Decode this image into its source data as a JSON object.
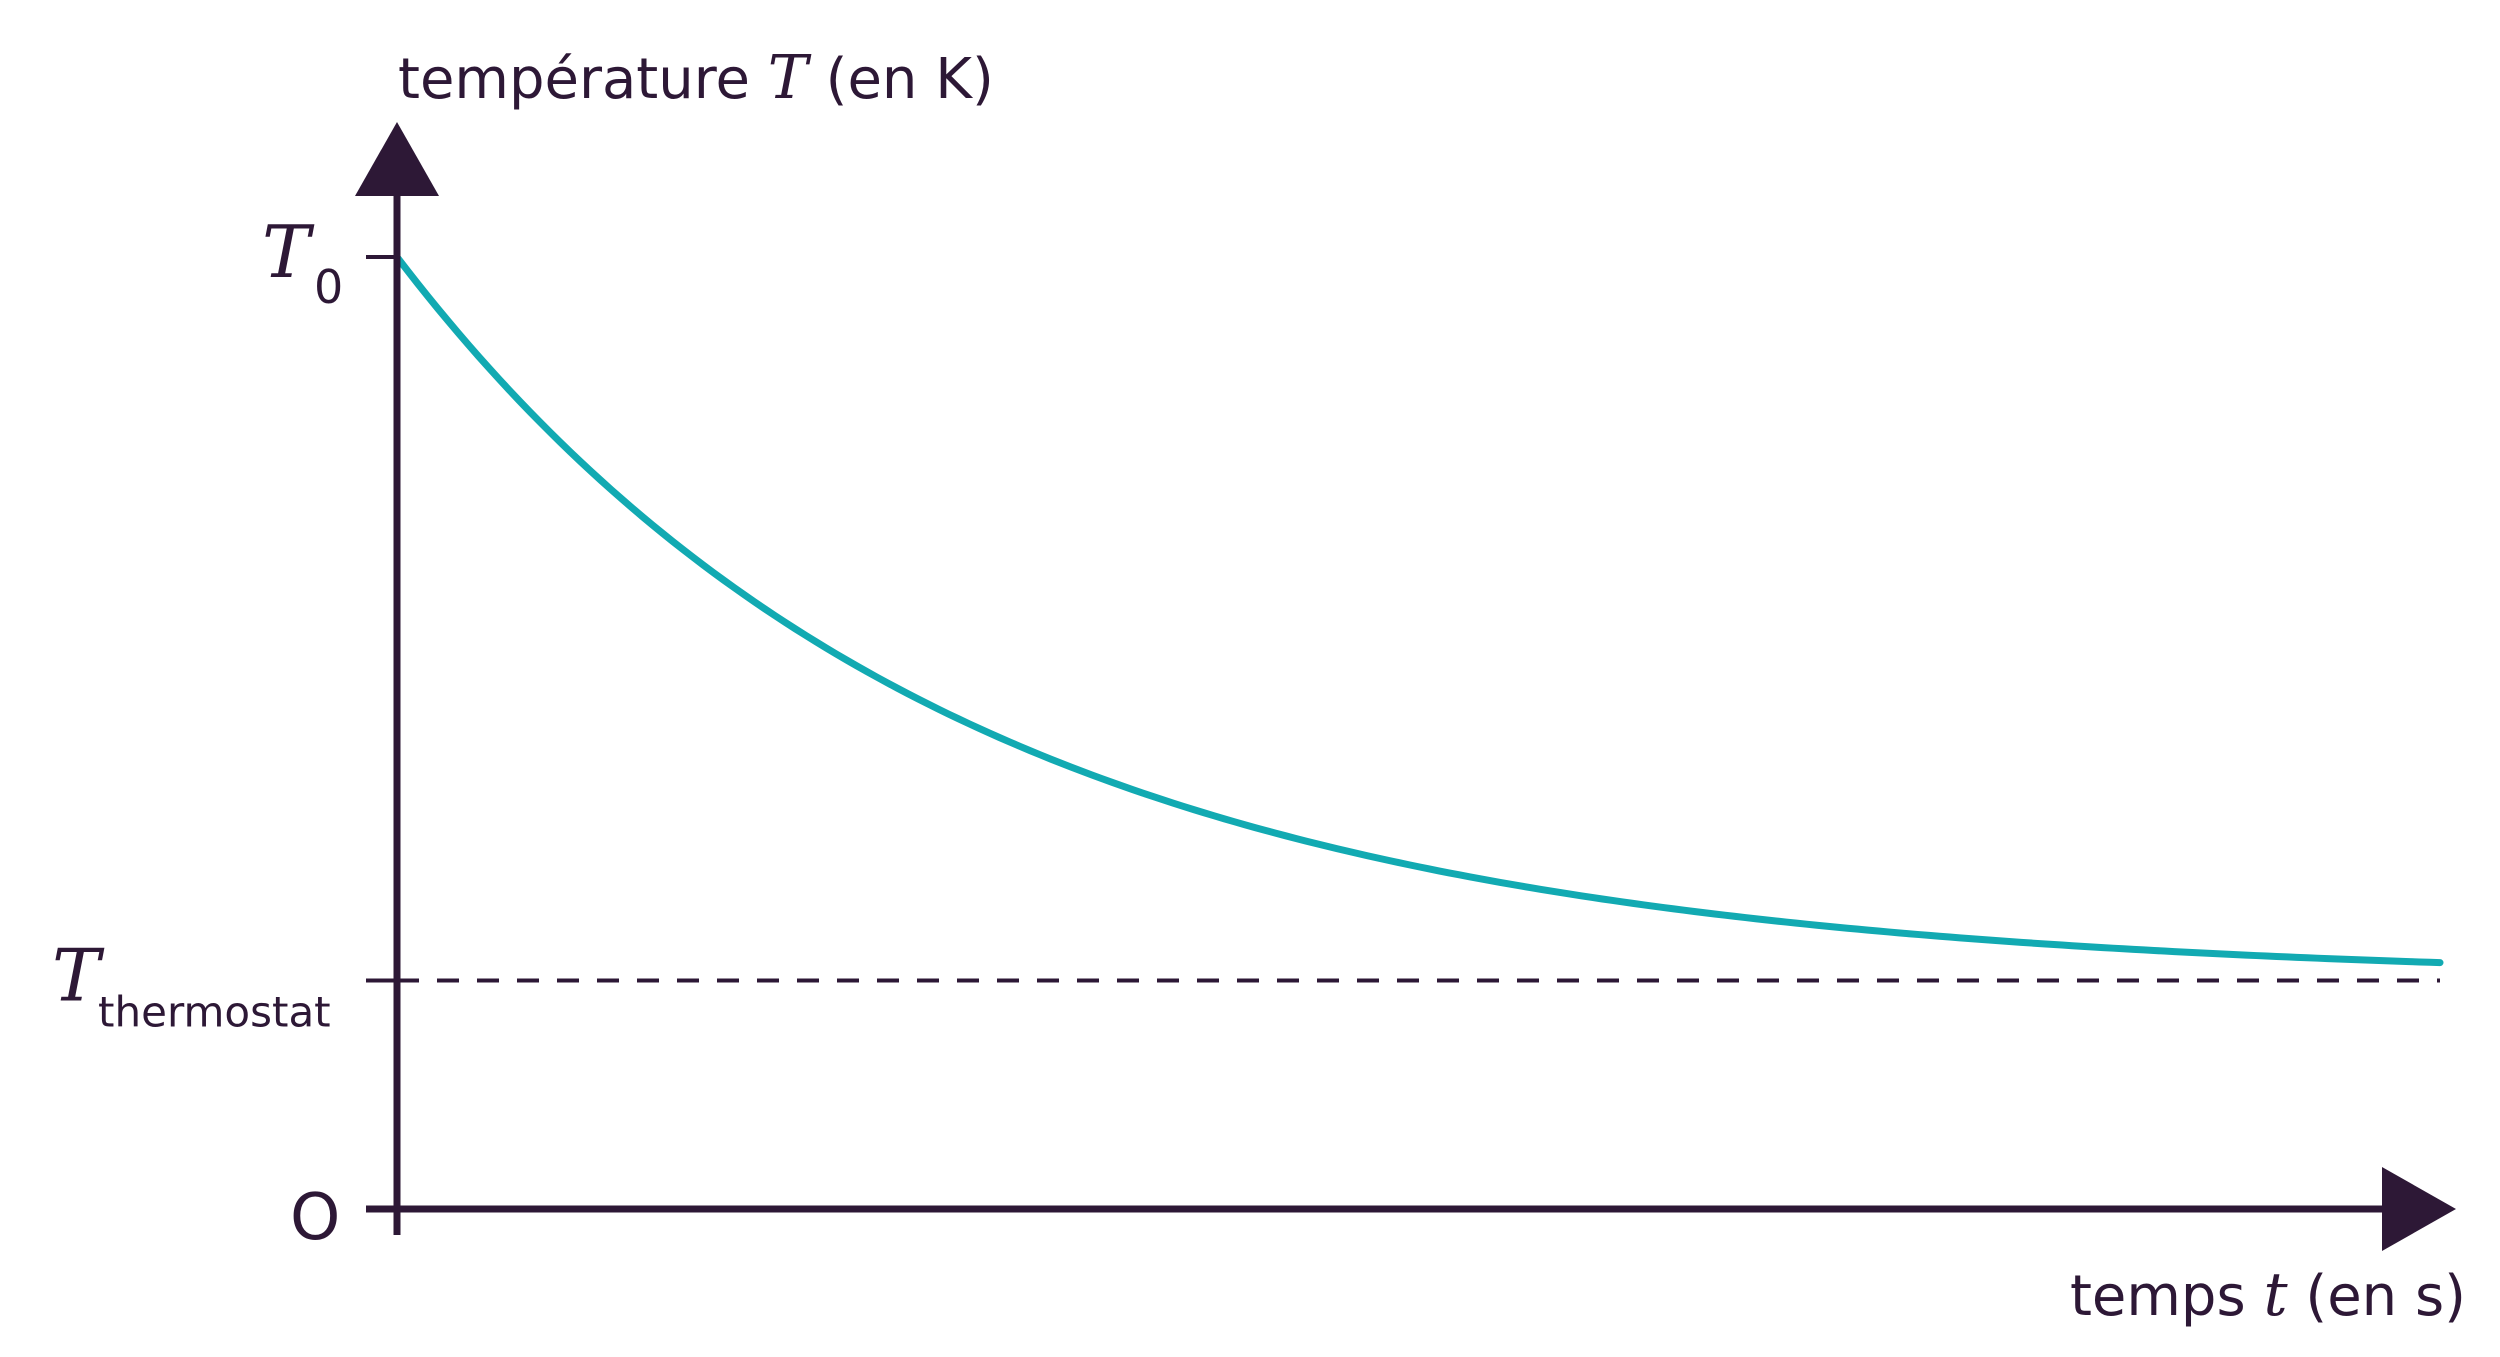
{
  "chart_data": {
    "type": "line",
    "y_axis": {
      "label_before": "température ",
      "label_symbol": "T",
      "label_after": " (en K)",
      "ticks": [
        {
          "symbol": "T",
          "subscript": "0",
          "value": 1.0
        },
        {
          "symbol": "T",
          "subscript": "thermostat",
          "value": 0.24
        },
        {
          "symbol": "O",
          "subscript": "",
          "value": 0.0
        }
      ]
    },
    "x_axis": {
      "label_before": "temps ",
      "label_symbol": "t",
      "label_after": " (en s)"
    },
    "xlim": [
      0,
      1.0
    ],
    "ylim": [
      0,
      1.0
    ],
    "series": [
      {
        "kind": "exponential-decay",
        "color": "#12aab2",
        "start_value": 1.0,
        "asymptote": 0.24,
        "decay_rate": 3.7
      }
    ],
    "reference_lines": [
      {
        "kind": "horizontal-dashed",
        "value": 0.24,
        "color": "#2d1836"
      }
    ],
    "axis_color": "#2d1836",
    "grid": false
  }
}
